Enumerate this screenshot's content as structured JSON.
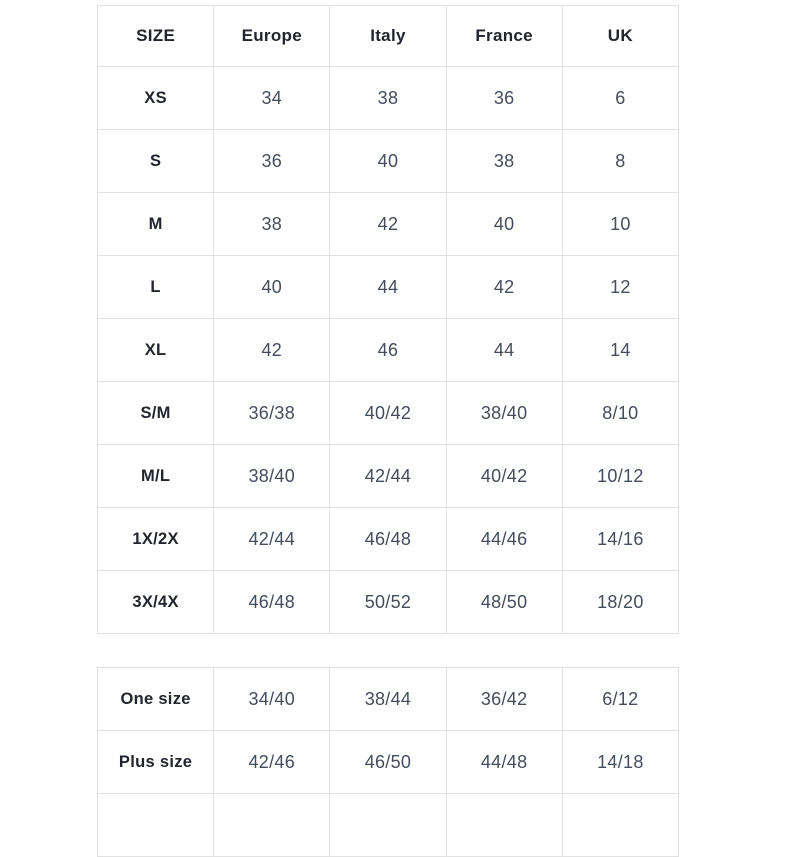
{
  "chart_data": {
    "type": "table",
    "columns": [
      "SIZE",
      "Europe",
      "Italy",
      "France",
      "UK"
    ],
    "rows": [
      [
        "XS",
        "34",
        "38",
        "36",
        "6"
      ],
      [
        "S",
        "36",
        "40",
        "38",
        "8"
      ],
      [
        "M",
        "38",
        "42",
        "40",
        "10"
      ],
      [
        "L",
        "40",
        "44",
        "42",
        "12"
      ],
      [
        "XL",
        "42",
        "46",
        "44",
        "14"
      ],
      [
        "S/M",
        "36/38",
        "40/42",
        "38/40",
        "8/10"
      ],
      [
        "M/L",
        "38/40",
        "42/44",
        "40/42",
        "10/12"
      ],
      [
        "1X/2X",
        "42/44",
        "46/48",
        "44/46",
        "14/16"
      ],
      [
        "3X/4X",
        "46/48",
        "50/52",
        "48/50",
        "18/20"
      ]
    ],
    "secondary_rows": [
      [
        "One size",
        "34/40",
        "38/44",
        "36/42",
        "6/12"
      ],
      [
        "Plus size",
        "42/46",
        "46/50",
        "44/48",
        "14/18"
      ]
    ],
    "layout": {
      "grid": "on",
      "column_count": 5,
      "note": "two stacked tables, third row of secondary table cut off at bottom edge"
    }
  },
  "colors": {
    "background": "#ffffff",
    "border": "#e1e1e1",
    "header_text": "#23252e",
    "cell_text": "#454d5c"
  }
}
